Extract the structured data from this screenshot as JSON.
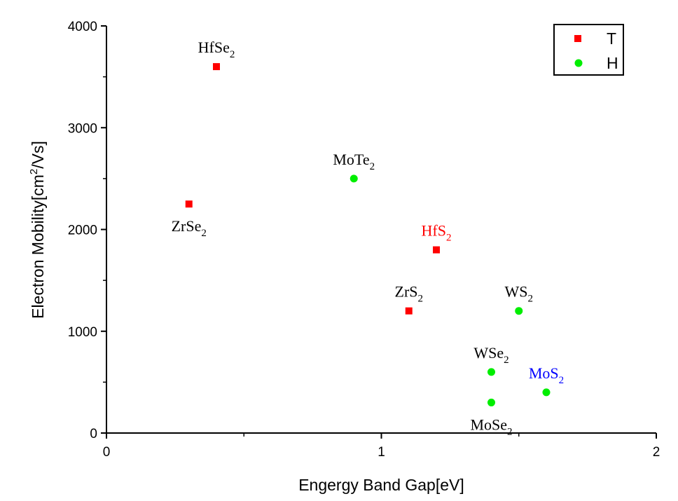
{
  "chart_data": {
    "type": "scatter",
    "xlabel": "Engergy Band Gap[eV]",
    "ylabel_parts": [
      "Electron Mobility[cm",
      "2",
      "/Vs]"
    ],
    "xlim": [
      0,
      2
    ],
    "ylim": [
      0,
      4000
    ],
    "xticks": [
      "0",
      "1",
      "2"
    ],
    "yticks": [
      "0",
      "1000",
      "2000",
      "3000",
      "4000"
    ],
    "grid": false,
    "legend_position": "top-right",
    "series": [
      {
        "name": "T",
        "marker": "square",
        "color": "#ff0000",
        "points": [
          {
            "x": 0.4,
            "y": 3600,
            "label": "HfSe",
            "sub": "2",
            "label_color": "#000000",
            "pos": "above"
          },
          {
            "x": 0.3,
            "y": 2250,
            "label": "ZrSe",
            "sub": "2",
            "label_color": "#000000",
            "pos": "below"
          },
          {
            "x": 1.2,
            "y": 1800,
            "label": "HfS",
            "sub": "2",
            "label_color": "#ff0000",
            "pos": "above"
          },
          {
            "x": 1.1,
            "y": 1200,
            "label": "ZrS",
            "sub": "2",
            "label_color": "#000000",
            "pos": "above"
          }
        ]
      },
      {
        "name": "H",
        "marker": "circle",
        "color": "#00ee00",
        "points": [
          {
            "x": 0.9,
            "y": 2500,
            "label": "MoTe",
            "sub": "2",
            "label_color": "#000000",
            "pos": "above"
          },
          {
            "x": 1.5,
            "y": 1200,
            "label": "WS",
            "sub": "2",
            "label_color": "#000000",
            "pos": "above"
          },
          {
            "x": 1.4,
            "y": 600,
            "label": "WSe",
            "sub": "2",
            "label_color": "#000000",
            "pos": "above"
          },
          {
            "x": 1.4,
            "y": 300,
            "label": "MoSe",
            "sub": "2",
            "label_color": "#000000",
            "pos": "below"
          },
          {
            "x": 1.6,
            "y": 400,
            "label": "MoS",
            "sub": "2",
            "label_color": "#0000ff",
            "pos": "above"
          }
        ]
      }
    ]
  }
}
